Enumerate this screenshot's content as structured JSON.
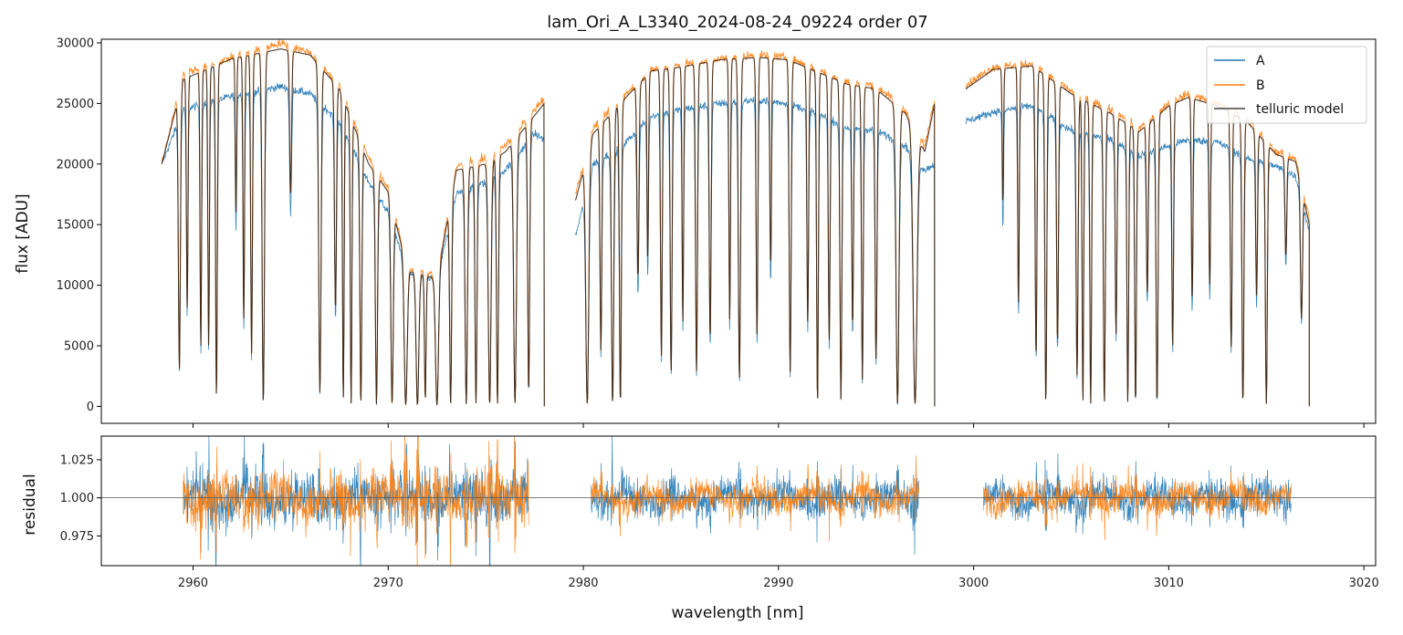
{
  "chart_data": [
    {
      "type": "line",
      "title": "lam_Ori_A_L3340_2024-08-24_09224  order 07",
      "xlabel": "",
      "ylabel": "flux [ADU]",
      "xlim": [
        2955.3,
        3020.6
      ],
      "ylim": [
        -1400,
        30300
      ],
      "yticks": [
        0,
        5000,
        10000,
        15000,
        20000,
        25000,
        30000
      ],
      "ytick_labels": [
        "0",
        "5000",
        "10000",
        "15000",
        "20000",
        "25000",
        "30000"
      ],
      "xticks": [
        2960,
        2970,
        2980,
        2990,
        3000,
        3010,
        3020
      ],
      "legend": {
        "position": "top-right",
        "entries": [
          {
            "label": "A",
            "color": "#1f77b4"
          },
          {
            "label": "B",
            "color": "#ff7f0e"
          },
          {
            "label": "telluric model",
            "color": "#444444"
          }
        ]
      },
      "continuum": {
        "segments": [
          {
            "x0": 2958.4,
            "x1": 2978.0
          },
          {
            "x0": 2979.6,
            "x1": 2998.0
          },
          {
            "x0": 2999.6,
            "x1": 3017.2
          }
        ],
        "A_points": [
          [
            2958.4,
            20000
          ],
          [
            2959.5,
            24500
          ],
          [
            2962,
            25600
          ],
          [
            2964.5,
            26400
          ],
          [
            2966,
            25800
          ],
          [
            2967.5,
            23500
          ],
          [
            2969,
            18500
          ],
          [
            2970,
            16000
          ],
          [
            2971,
            11000
          ],
          [
            2972.5,
            10500
          ],
          [
            2973.5,
            17500
          ],
          [
            2975,
            18500
          ],
          [
            2976,
            19500
          ],
          [
            2977.5,
            22500
          ],
          [
            2978,
            22000
          ],
          [
            2979.6,
            14000
          ],
          [
            2980.5,
            20000
          ],
          [
            2982,
            21500
          ],
          [
            2983.5,
            24000
          ],
          [
            2985,
            24500
          ],
          [
            2987,
            25000
          ],
          [
            2989,
            25300
          ],
          [
            2990.5,
            25000
          ],
          [
            2992,
            24200
          ],
          [
            2993.5,
            23000
          ],
          [
            2995,
            22800
          ],
          [
            2996.5,
            21500
          ],
          [
            2997.5,
            19500
          ],
          [
            2998,
            20000
          ],
          [
            2999.6,
            23500
          ],
          [
            3001,
            24300
          ],
          [
            3003,
            24800
          ],
          [
            3005,
            22800
          ],
          [
            3007,
            22000
          ],
          [
            3008.5,
            20700
          ],
          [
            3010,
            21500
          ],
          [
            3011,
            22000
          ],
          [
            3012.5,
            21800
          ],
          [
            3014,
            20500
          ],
          [
            3015.5,
            19800
          ],
          [
            3016.5,
            19000
          ],
          [
            3017.2,
            14500
          ]
        ],
        "B_points": [
          [
            2958.4,
            20000
          ],
          [
            2959.5,
            27500
          ],
          [
            2962,
            28800
          ],
          [
            2964.5,
            30000
          ],
          [
            2966,
            29200
          ],
          [
            2967.5,
            26500
          ],
          [
            2969,
            20500
          ],
          [
            2970,
            18000
          ],
          [
            2971,
            11500
          ],
          [
            2972.5,
            10800
          ],
          [
            2973.5,
            19800
          ],
          [
            2975,
            20500
          ],
          [
            2976,
            21500
          ],
          [
            2977.5,
            24500
          ],
          [
            2978,
            25500
          ],
          [
            2979.6,
            17500
          ],
          [
            2980.5,
            23000
          ],
          [
            2982,
            25500
          ],
          [
            2983.5,
            27800
          ],
          [
            2985,
            28200
          ],
          [
            2987,
            28700
          ],
          [
            2989,
            29000
          ],
          [
            2990.5,
            28800
          ],
          [
            2992,
            27800
          ],
          [
            2993.5,
            26800
          ],
          [
            2995,
            26500
          ],
          [
            2996.5,
            24500
          ],
          [
            2997.5,
            21500
          ],
          [
            2998,
            25500
          ],
          [
            2999.6,
            26500
          ],
          [
            3001,
            28000
          ],
          [
            3003,
            28300
          ],
          [
            3005,
            26000
          ],
          [
            3007,
            24500
          ],
          [
            3008.5,
            23000
          ],
          [
            3010,
            25000
          ],
          [
            3011,
            25800
          ],
          [
            3012.5,
            25000
          ],
          [
            3014,
            23800
          ],
          [
            3015.5,
            21000
          ],
          [
            3016.5,
            20500
          ],
          [
            3017.2,
            15500
          ]
        ],
        "model_points": [
          [
            2958.4,
            20000
          ],
          [
            2959.5,
            27000
          ],
          [
            2962,
            28700
          ],
          [
            2964.5,
            29500
          ],
          [
            2966,
            29000
          ],
          [
            2967.5,
            26200
          ],
          [
            2969,
            20000
          ],
          [
            2970,
            17700
          ],
          [
            2971,
            11200
          ],
          [
            2972.5,
            10500
          ],
          [
            2973.5,
            19500
          ],
          [
            2975,
            20000
          ],
          [
            2976,
            21000
          ],
          [
            2977.5,
            24000
          ],
          [
            2978,
            25000
          ],
          [
            2979.6,
            17000
          ],
          [
            2980.5,
            22500
          ],
          [
            2982,
            25200
          ],
          [
            2983.5,
            27700
          ],
          [
            2985,
            28000
          ],
          [
            2987,
            28600
          ],
          [
            2989,
            28800
          ],
          [
            2990.5,
            28600
          ],
          [
            2992,
            27600
          ],
          [
            2993.5,
            26600
          ],
          [
            2995,
            26200
          ],
          [
            2996.5,
            24200
          ],
          [
            2997.5,
            21000
          ],
          [
            2998,
            25000
          ],
          [
            2999.6,
            26200
          ],
          [
            3001,
            27800
          ],
          [
            3003,
            28100
          ],
          [
            3005,
            25800
          ],
          [
            3007,
            24200
          ],
          [
            3008.5,
            22700
          ],
          [
            3010,
            24800
          ],
          [
            3011,
            25500
          ],
          [
            3012.5,
            24800
          ],
          [
            3014,
            23500
          ],
          [
            3015.5,
            20800
          ],
          [
            3016.5,
            20200
          ],
          [
            3017.2,
            15000
          ]
        ]
      },
      "absorption_lines": [
        [
          2959.3,
          0.88,
          0.1
        ],
        [
          2959.7,
          0.7,
          0.08
        ],
        [
          2960.4,
          0.82,
          0.08
        ],
        [
          2960.8,
          0.82,
          0.08
        ],
        [
          2961.2,
          0.97,
          0.09
        ],
        [
          2962.2,
          0.45,
          0.07
        ],
        [
          2962.6,
          0.75,
          0.08
        ],
        [
          2963.0,
          0.85,
          0.09
        ],
        [
          2963.6,
          0.99,
          0.12
        ],
        [
          2965.0,
          0.4,
          0.1
        ],
        [
          2966.5,
          0.96,
          0.12
        ],
        [
          2967.3,
          0.7,
          0.1
        ],
        [
          2967.7,
          0.98,
          0.08
        ],
        [
          2968.1,
          0.99,
          0.08
        ],
        [
          2968.6,
          0.99,
          0.1
        ],
        [
          2969.4,
          0.99,
          0.11
        ],
        [
          2970.2,
          0.99,
          0.12
        ],
        [
          2970.9,
          0.99,
          0.15
        ],
        [
          2971.5,
          0.99,
          0.14
        ],
        [
          2971.9,
          0.95,
          0.08
        ],
        [
          2972.5,
          0.99,
          0.15
        ],
        [
          2973.2,
          0.99,
          0.1
        ],
        [
          2974.0,
          0.99,
          0.12
        ],
        [
          2974.5,
          0.99,
          0.1
        ],
        [
          2975.2,
          0.99,
          0.14
        ],
        [
          2975.6,
          0.99,
          0.1
        ],
        [
          2976.5,
          0.99,
          0.14
        ],
        [
          2977.2,
          0.95,
          0.1
        ],
        [
          2980.2,
          0.99,
          0.15
        ],
        [
          2980.9,
          0.8,
          0.09
        ],
        [
          2981.5,
          0.99,
          0.12
        ],
        [
          2981.9,
          0.99,
          0.1
        ],
        [
          2982.8,
          0.6,
          0.1
        ],
        [
          2983.3,
          0.55,
          0.08
        ],
        [
          2984.0,
          0.85,
          0.09
        ],
        [
          2984.5,
          0.9,
          0.1
        ],
        [
          2985.1,
          0.75,
          0.08
        ],
        [
          2985.8,
          0.9,
          0.1
        ],
        [
          2986.5,
          0.8,
          0.1
        ],
        [
          2987.5,
          0.75,
          0.08
        ],
        [
          2988.0,
          0.92,
          0.11
        ],
        [
          2988.9,
          0.8,
          0.09
        ],
        [
          2989.6,
          0.6,
          0.08
        ],
        [
          2990.6,
          0.9,
          0.1
        ],
        [
          2991.5,
          0.75,
          0.09
        ],
        [
          2992.0,
          0.99,
          0.09
        ],
        [
          2992.6,
          0.8,
          0.09
        ],
        [
          2993.2,
          0.98,
          0.1
        ],
        [
          2993.8,
          0.75,
          0.09
        ],
        [
          2994.3,
          0.92,
          0.09
        ],
        [
          2995.0,
          0.85,
          0.1
        ],
        [
          2996.1,
          0.99,
          0.15
        ],
        [
          2997.0,
          0.99,
          0.2
        ],
        [
          3001.5,
          0.4,
          0.07
        ],
        [
          3002.3,
          0.7,
          0.08
        ],
        [
          3003.2,
          0.85,
          0.09
        ],
        [
          3003.7,
          0.99,
          0.1
        ],
        [
          3004.3,
          0.8,
          0.1
        ],
        [
          3005.3,
          0.9,
          0.1
        ],
        [
          3005.6,
          0.99,
          0.08
        ],
        [
          3006.0,
          0.99,
          0.09
        ],
        [
          3006.7,
          0.99,
          0.1
        ],
        [
          3007.3,
          0.75,
          0.09
        ],
        [
          3007.9,
          0.99,
          0.09
        ],
        [
          3008.3,
          0.99,
          0.09
        ],
        [
          3008.9,
          0.6,
          0.09
        ],
        [
          3009.4,
          0.99,
          0.1
        ],
        [
          3010.2,
          0.8,
          0.09
        ],
        [
          3011.2,
          0.65,
          0.08
        ],
        [
          3012.1,
          0.6,
          0.08
        ],
        [
          3013.2,
          0.8,
          0.09
        ],
        [
          3013.8,
          0.99,
          0.1
        ],
        [
          3014.5,
          0.6,
          0.09
        ],
        [
          3015.0,
          0.99,
          0.1
        ],
        [
          3016.0,
          0.4,
          0.09
        ],
        [
          3016.8,
          0.6,
          0.1
        ]
      ]
    },
    {
      "type": "line",
      "title": "",
      "xlabel": "wavelength [nm]",
      "ylabel": "residual",
      "xlim": [
        2955.3,
        3020.6
      ],
      "ylim": [
        0.9555,
        1.0405
      ],
      "reference_line": 1.0,
      "yticks": [
        0.975,
        1.0,
        1.025
      ],
      "ytick_labels": [
        "0.975",
        "1.000",
        "1.025"
      ],
      "xticks": [
        2960,
        2970,
        2980,
        2990,
        3000,
        3010,
        3020
      ],
      "xtick_labels": [
        "2960",
        "2970",
        "2980",
        "2990",
        "3000",
        "3010",
        "3020"
      ],
      "segments": [
        {
          "x0": 2959.5,
          "x1": 2977.2,
          "noise_A": 0.017,
          "noise_B": 0.016
        },
        {
          "x0": 2980.4,
          "x1": 2997.2,
          "noise_A": 0.011,
          "noise_B": 0.009
        },
        {
          "x0": 3000.5,
          "x1": 3016.3,
          "noise_A": 0.011,
          "noise_B": 0.009
        }
      ],
      "series_colors": {
        "A": "#1f77b4",
        "B": "#ff7f0e"
      }
    }
  ]
}
